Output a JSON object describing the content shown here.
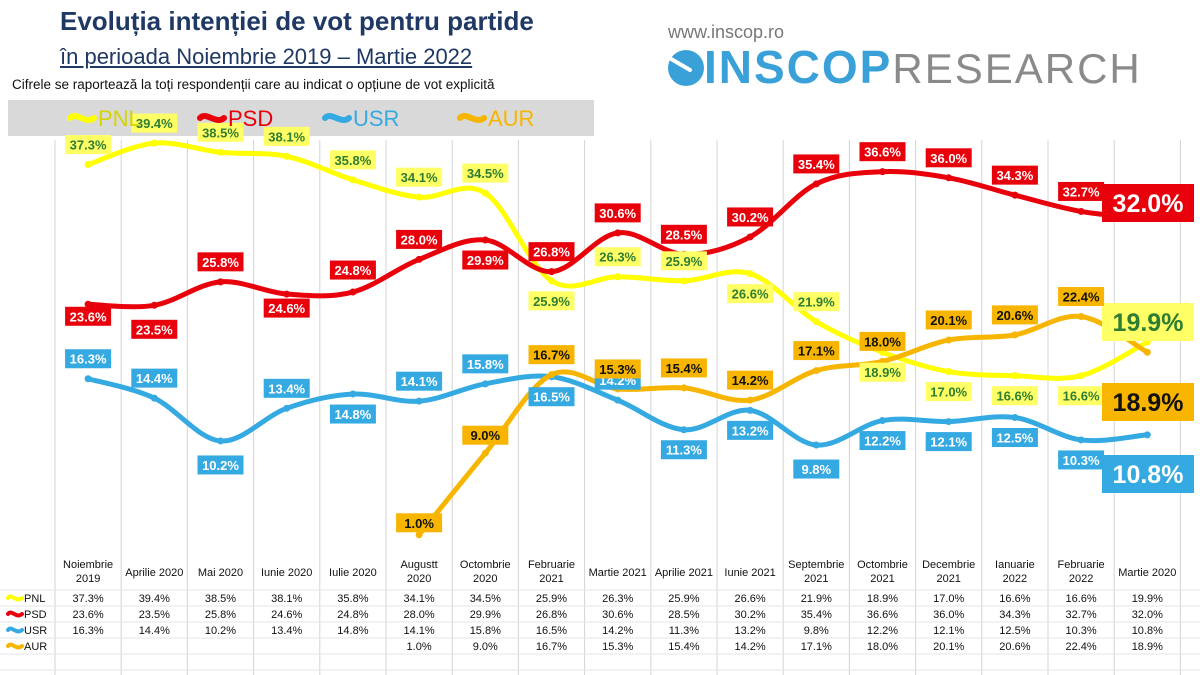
{
  "header": {
    "title": "Evoluția intenției de vot pentru partide",
    "subtitle": "în perioada Noiembrie 2019 – Martie 2022",
    "note": "Cifrele se raportează la toți respondenții care au indicat o opțiune de vot explicită"
  },
  "brand": {
    "url": "www.inscop.ro",
    "name_bold": "INSCOP",
    "name_light": "RESEARCH",
    "color": "#3aa0d8"
  },
  "chart_data": {
    "type": "line",
    "categories": [
      "Noiembrie 2019",
      "Aprilie 2020",
      "Mai 2020",
      "Iunie 2020",
      "Iulie 2020",
      "Augustt 2020",
      "Octombrie 2020",
      "Februarie 2021",
      "Martie 2021",
      "Aprilie 2021",
      "Iunie 2021",
      "Septembrie 2021",
      "Octombrie 2021",
      "Decembrie 2021",
      "Ianuarie 2022",
      "Februarie 2022",
      "Martie 2020"
    ],
    "series": [
      {
        "name": "PNL",
        "color": "#ffff00",
        "label_text": "#2e7d32",
        "label_bg": "#ffff66",
        "final": "19.9%",
        "values": [
          37.3,
          39.4,
          38.5,
          38.1,
          35.8,
          34.1,
          34.5,
          25.9,
          26.3,
          25.9,
          26.6,
          21.9,
          18.9,
          17.0,
          16.6,
          16.6,
          19.9
        ]
      },
      {
        "name": "PSD",
        "color": "#e8000b",
        "label_text": "#ffffff",
        "label_bg": "#e8000b",
        "final": "32.0%",
        "values": [
          23.6,
          23.5,
          25.8,
          24.6,
          24.8,
          28.0,
          29.9,
          26.8,
          30.6,
          28.5,
          30.2,
          35.4,
          36.6,
          36.0,
          34.3,
          32.7,
          32.0
        ]
      },
      {
        "name": "USR",
        "color": "#35a9e1",
        "label_text": "#ffffff",
        "label_bg": "#35a9e1",
        "final": "10.8%",
        "values": [
          16.3,
          14.4,
          10.2,
          13.4,
          14.8,
          14.1,
          15.8,
          16.5,
          14.2,
          11.3,
          13.2,
          9.8,
          12.2,
          12.1,
          12.5,
          10.3,
          10.8
        ]
      },
      {
        "name": "AUR",
        "color": "#f7b500",
        "label_text": "#111111",
        "label_bg": "#f7b500",
        "final": "18.9%",
        "values": [
          null,
          null,
          null,
          null,
          null,
          1.0,
          9.0,
          16.7,
          15.3,
          15.4,
          14.2,
          17.1,
          18.0,
          20.1,
          20.6,
          22.4,
          18.9
        ]
      }
    ],
    "ylim": [
      0,
      42
    ],
    "grid": "vertical",
    "legend": "top-left"
  }
}
